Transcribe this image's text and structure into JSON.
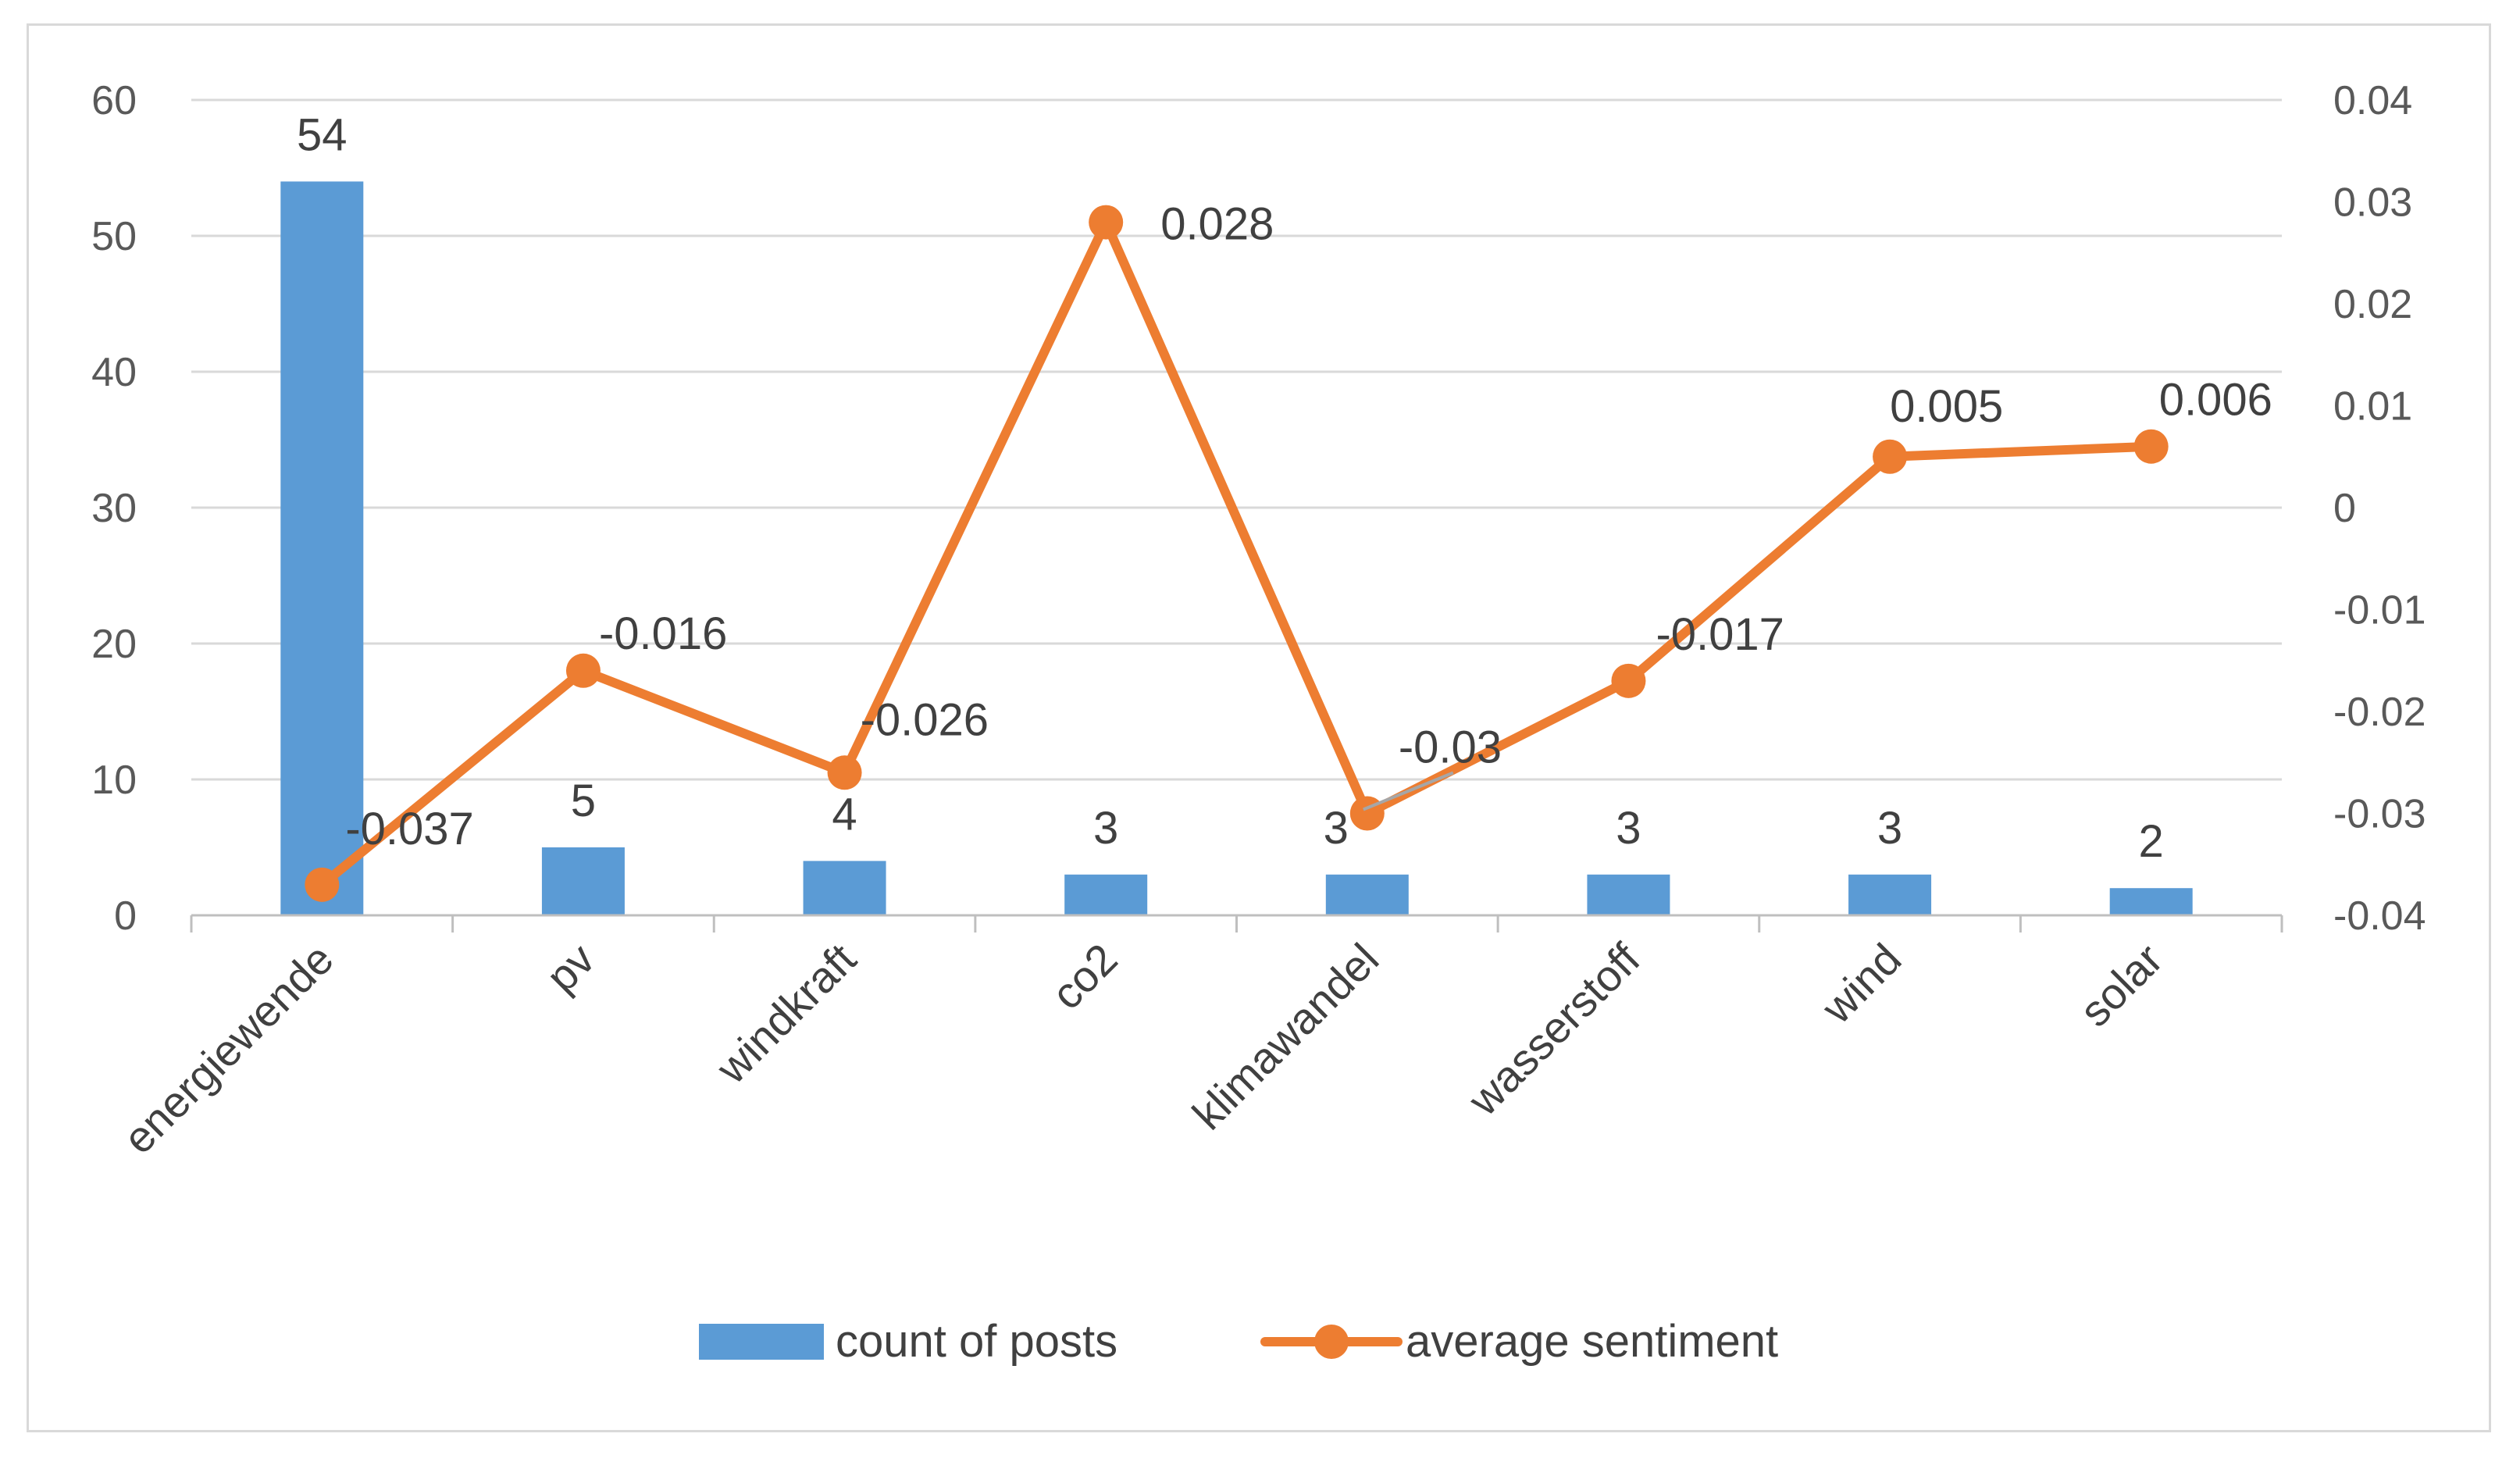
{
  "chart_data": {
    "type": "bar+line",
    "title": "",
    "categories": [
      "energiewende",
      "pv",
      "windkraft",
      "co2",
      "klimawandel",
      "wasserstoff",
      "wind",
      "solar"
    ],
    "series": [
      {
        "name": "count of posts",
        "type": "bar",
        "axis": "left",
        "color": "#5b9bd5",
        "values": [
          54,
          5,
          4,
          3,
          3,
          3,
          3,
          2
        ],
        "labels": [
          "54",
          "5",
          "4",
          "3",
          "3",
          "3",
          "3",
          "2"
        ]
      },
      {
        "name": "average sentiment",
        "type": "line",
        "axis": "right",
        "color": "#ed7d31",
        "values": [
          -0.037,
          -0.016,
          -0.026,
          0.028,
          -0.03,
          -0.017,
          0.005,
          0.006
        ],
        "labels": [
          "-0.037",
          "-0.016",
          "-0.026",
          "0.028",
          "-0.03",
          "-0.017",
          "0.005",
          "0.006"
        ]
      }
    ],
    "y_left": {
      "min": 0,
      "max": 60,
      "step": 10,
      "ticks": [
        "0",
        "10",
        "20",
        "30",
        "40",
        "50",
        "60"
      ]
    },
    "y_right": {
      "min": -0.04,
      "max": 0.04,
      "step": 0.01,
      "ticks": [
        "-0.04",
        "-0.03",
        "-0.02",
        "-0.01",
        "0",
        "0.01",
        "0.02",
        "0.03",
        "0.04"
      ]
    },
    "grid": true,
    "legend_position": "bottom-center",
    "colors": {
      "grid": "#d9d9d9",
      "axis": "#bfbfbf",
      "frame": "#d9d9d9"
    }
  }
}
